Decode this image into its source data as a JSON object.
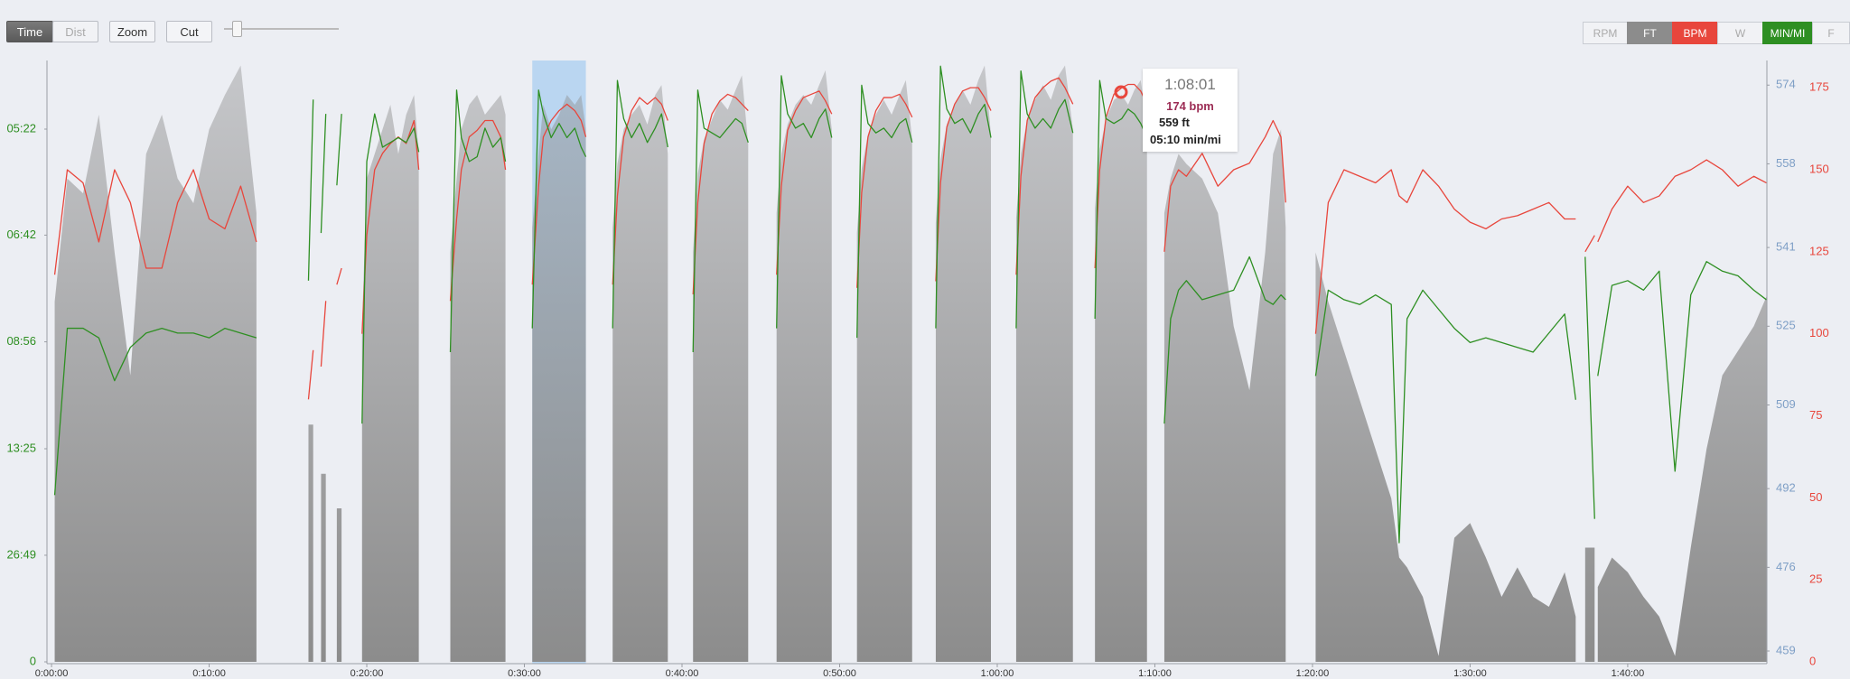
{
  "toolbar": {
    "buttons": [
      "Time",
      "Dist",
      "Zoom",
      "Cut"
    ],
    "toggles": [
      "RPM",
      "W",
      "F"
    ]
  },
  "tooltip": {
    "title": "1:08:01",
    "lines": [
      "174 bpm",
      "559 ft",
      "05:10 min/mi"
    ]
  },
  "chart_data": {
    "type": "line",
    "xlim": [
      -0.29,
      108.83
    ],
    "xticks": [
      {
        "value": 0,
        "label": "0:00:00"
      },
      {
        "value": 10,
        "label": "0:10:00"
      },
      {
        "value": 20,
        "label": "0:20:00"
      },
      {
        "value": 30,
        "label": "0:30:00"
      },
      {
        "value": 40,
        "label": "0:40:00"
      },
      {
        "value": 50,
        "label": "0:50:00"
      },
      {
        "value": 60,
        "label": "1:00:00"
      },
      {
        "value": 70,
        "label": "1:10:00"
      },
      {
        "value": 80,
        "label": "1:20:00"
      },
      {
        "value": 90,
        "label": "1:30:00"
      },
      {
        "value": 100,
        "label": "1:40:00"
      }
    ],
    "ylim": [
      0,
      12.62
    ],
    "yticks": [
      {
        "value": 0,
        "label": "0"
      },
      {
        "value": 2.237,
        "label": "26:49"
      },
      {
        "value": 4.472,
        "label": "13:25"
      },
      {
        "value": 6.716,
        "label": "08:56"
      },
      {
        "value": 8.955,
        "label": "06:42"
      },
      {
        "value": 11.18,
        "label": "05:22"
      }
    ],
    "y2lim": [
      456.8,
      579
    ],
    "y2ticks": [
      459,
      476,
      492,
      509,
      525,
      541,
      558,
      574
    ],
    "y3lim": [
      0,
      183.3
    ],
    "y3ticks": [
      0,
      25,
      50,
      75,
      100,
      125,
      150,
      175
    ],
    "selection": {
      "start": 30.5,
      "end": 33.9
    },
    "x": [
      0.2,
      1,
      2,
      3,
      4,
      5,
      6,
      7,
      8,
      9,
      10,
      11,
      12,
      13,
      14.5,
      16.3,
      16.6,
      16.85,
      17.1,
      17.4,
      17.75,
      18.1,
      18.4,
      19,
      19.7,
      20,
      20.5,
      21,
      21.5,
      22,
      22.5,
      23,
      23.3,
      24.3,
      25.3,
      25.7,
      26,
      26.5,
      27,
      27.5,
      28,
      28.5,
      28.8,
      29.6,
      30.5,
      30.9,
      31.2,
      31.7,
      32.2,
      32.7,
      33.2,
      33.6,
      33.9,
      34.7,
      35.6,
      35.9,
      36.3,
      36.8,
      37.3,
      37.8,
      38.3,
      38.7,
      39.1,
      39.9,
      40.7,
      41.0,
      41.4,
      41.9,
      42.4,
      42.9,
      43.4,
      43.8,
      44.2,
      45.1,
      46.0,
      46.3,
      46.7,
      47.2,
      47.7,
      48.2,
      48.7,
      49.1,
      49.5,
      50.3,
      51.1,
      51.4,
      51.8,
      52.3,
      52.8,
      53.3,
      53.8,
      54.2,
      54.6,
      55.3,
      56.1,
      56.4,
      56.8,
      57.3,
      57.8,
      58.3,
      58.8,
      59.2,
      59.6,
      60.4,
      61.2,
      61.5,
      61.9,
      62.4,
      62.9,
      63.4,
      63.9,
      64.3,
      64.8,
      65.5,
      66.2,
      66.5,
      66.9,
      67.4,
      67.9,
      68.3,
      68.7,
      69.1,
      69.5,
      70.0,
      70.6,
      71,
      71.5,
      72,
      73,
      74,
      75,
      76,
      77,
      77.5,
      78,
      78.3,
      79.2,
      80.2,
      81,
      82,
      83,
      84,
      85,
      85.5,
      86,
      87,
      88,
      89,
      90,
      91,
      92,
      93,
      94,
      95,
      96,
      96.7,
      97,
      97.3,
      97.9,
      98.0,
      98.1,
      99,
      100,
      101,
      102,
      103,
      104,
      105,
      106,
      107,
      108,
      108.8
    ],
    "series": [
      {
        "name": "FT",
        "type": "area",
        "axis": "y2",
        "color": "#8c8c8c",
        "values": [
          530,
          555,
          552,
          568,
          540,
          515,
          560,
          568,
          555,
          550,
          565,
          572,
          578,
          548,
          null,
          505,
          505,
          null,
          495,
          495,
          null,
          488,
          488,
          null,
          525,
          555,
          560,
          565,
          570,
          560,
          568,
          572,
          560,
          null,
          540,
          555,
          565,
          570,
          572,
          568,
          570,
          572,
          568,
          null,
          545,
          560,
          570,
          565,
          568,
          572,
          570,
          572,
          565,
          null,
          545,
          558,
          565,
          568,
          570,
          566,
          572,
          574,
          560,
          null,
          540,
          556,
          563,
          567,
          571,
          569,
          573,
          576,
          562,
          null,
          548,
          560,
          566,
          570,
          572,
          570,
          574,
          577,
          565,
          null,
          544,
          557,
          564,
          568,
          571,
          568,
          572,
          575,
          563,
          null,
          546,
          559,
          566,
          570,
          573,
          570,
          575,
          578,
          564,
          null,
          547,
          560,
          567,
          571,
          574,
          571,
          576,
          578,
          565,
          null,
          549,
          561,
          567,
          571,
          572,
          570,
          573,
          575,
          566,
          null,
          548,
          555,
          560,
          558,
          555,
          548,
          525,
          512,
          540,
          560,
          565,
          545,
          null,
          540,
          530,
          520,
          510,
          500,
          490,
          478,
          476,
          470,
          458,
          482,
          485,
          478,
          470,
          476,
          470,
          468,
          475,
          466,
          null,
          480,
          480,
          null,
          472,
          478,
          475,
          470,
          466,
          458,
          480,
          500,
          515,
          520,
          525,
          531
        ]
      },
      {
        "name": "BPM",
        "type": "line",
        "axis": "y3",
        "color": "#e8463c",
        "values": [
          118,
          150,
          146,
          128,
          150,
          140,
          120,
          120,
          140,
          150,
          135,
          132,
          145,
          128,
          null,
          80,
          95,
          null,
          90,
          110,
          null,
          115,
          120,
          null,
          100,
          130,
          150,
          155,
          158,
          160,
          158,
          165,
          150,
          null,
          110,
          135,
          150,
          160,
          162,
          165,
          165,
          160,
          150,
          null,
          115,
          145,
          160,
          165,
          168,
          170,
          168,
          165,
          160,
          null,
          115,
          142,
          160,
          168,
          172,
          170,
          172,
          170,
          165,
          null,
          112,
          140,
          158,
          167,
          171,
          173,
          172,
          170,
          168,
          null,
          118,
          145,
          162,
          168,
          172,
          173,
          174,
          171,
          167,
          null,
          114,
          143,
          160,
          168,
          172,
          172,
          173,
          170,
          166,
          null,
          116,
          146,
          163,
          170,
          174,
          175,
          175,
          172,
          168,
          null,
          118,
          148,
          165,
          172,
          175,
          177,
          178,
          175,
          170,
          null,
          120,
          150,
          166,
          173,
          175,
          176,
          176,
          174,
          170,
          null,
          125,
          145,
          150,
          148,
          155,
          145,
          150,
          152,
          160,
          165,
          160,
          140,
          null,
          100,
          140,
          150,
          148,
          146,
          150,
          142,
          140,
          150,
          145,
          138,
          134,
          132,
          135,
          136,
          138,
          140,
          135,
          135,
          null,
          125,
          130,
          null,
          128,
          138,
          145,
          140,
          142,
          148,
          150,
          153,
          150,
          145,
          148,
          146
        ]
      },
      {
        "name": "MIN/MI",
        "type": "line",
        "axis": "y",
        "color": "#2e8f22",
        "values": [
          3.5,
          7.0,
          7.0,
          6.8,
          5.9,
          6.6,
          6.9,
          7.0,
          6.9,
          6.9,
          6.8,
          7.0,
          6.9,
          6.8,
          null,
          8.0,
          11.8,
          null,
          9.0,
          11.5,
          null,
          10.0,
          11.5,
          null,
          5,
          10.5,
          11.5,
          10.8,
          10.9,
          11.0,
          10.9,
          11.2,
          10.7,
          null,
          6.5,
          12.0,
          11.0,
          10.5,
          10.6,
          11.2,
          10.8,
          11.0,
          10.5,
          null,
          7,
          12,
          11.5,
          11,
          11.3,
          11,
          11.2,
          10.8,
          10.6,
          null,
          7,
          12.2,
          11.4,
          11.0,
          11.3,
          10.9,
          11.2,
          11.5,
          10.8,
          null,
          6.5,
          12.0,
          11.2,
          11.1,
          11.0,
          11.2,
          11.4,
          11.3,
          10.9,
          null,
          7,
          12.3,
          11.5,
          11.2,
          11.3,
          11.0,
          11.4,
          11.6,
          11.0,
          null,
          6.8,
          12.1,
          11.3,
          11.1,
          11.2,
          11.0,
          11.3,
          11.4,
          10.9,
          null,
          7,
          12.5,
          11.6,
          11.3,
          11.4,
          11.1,
          11.5,
          11.7,
          11.0,
          null,
          7,
          12.4,
          11.5,
          11.2,
          11.4,
          11.2,
          11.6,
          11.8,
          11.1,
          null,
          7.2,
          12.2,
          11.4,
          11.3,
          11.4,
          11.6,
          11.5,
          11.3,
          11.0,
          null,
          5,
          7.2,
          7.8,
          8.0,
          7.6,
          7.7,
          7.8,
          8.5,
          7.6,
          7.5,
          7.7,
          7.6,
          null,
          6,
          7.8,
          7.6,
          7.5,
          7.7,
          7.5,
          2.5,
          7.2,
          7.8,
          7.4,
          7.0,
          6.7,
          6.8,
          6.7,
          6.6,
          6.5,
          6.9,
          7.3,
          5.5,
          null,
          8.5,
          3,
          null,
          6,
          7.9,
          8.0,
          7.8,
          8.2,
          4,
          7.7,
          8.4,
          8.2,
          8.1,
          7.8,
          7.6
        ]
      }
    ]
  }
}
